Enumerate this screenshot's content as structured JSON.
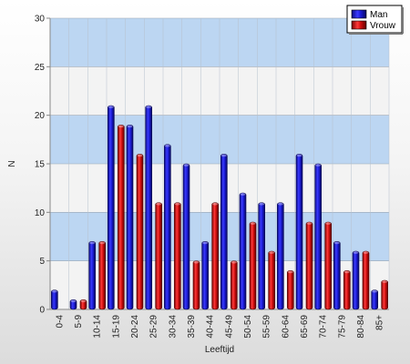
{
  "chart_data": {
    "type": "bar",
    "title": "",
    "xlabel": "Leeftijd",
    "ylabel": "N",
    "ylim": [
      0,
      30
    ],
    "yticks": [
      0,
      5,
      10,
      15,
      20,
      25,
      30
    ],
    "grid": "horizontal bands",
    "legend_position": "top-right",
    "categories": [
      "0-4",
      "5-9",
      "10-14",
      "15-19",
      "20-24",
      "25-29",
      "30-34",
      "35-39",
      "40-44",
      "45-49",
      "50-54",
      "55-59",
      "60-64",
      "65-69",
      "70-74",
      "75-79",
      "80-84",
      "85+"
    ],
    "series": [
      {
        "name": "Man",
        "color": "#1a1acc",
        "values": [
          2,
          1,
          7,
          21,
          19,
          21,
          17,
          15,
          7,
          16,
          12,
          11,
          11,
          16,
          15,
          7,
          6,
          2
        ]
      },
      {
        "name": "Vrouw",
        "color": "#d01010",
        "values": [
          0,
          1,
          7,
          19,
          16,
          11,
          11,
          5,
          11,
          5,
          9,
          6,
          4,
          9,
          9,
          4,
          6,
          3
        ]
      }
    ],
    "band_colors": [
      "#bcd6f2",
      "#f3f3f3"
    ]
  }
}
